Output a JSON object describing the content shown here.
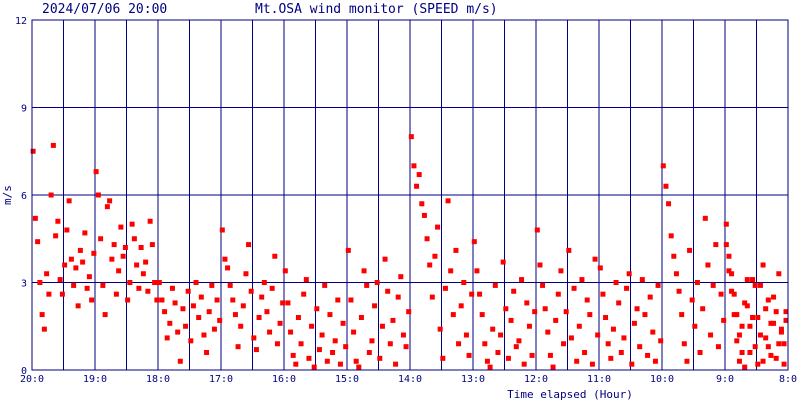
{
  "header": {
    "datetime": "2024/07/06 20:00",
    "title": "Mt.OSA wind monitor (SPEED m/s)"
  },
  "colors": {
    "background": "#ffffff",
    "grid": "#000080",
    "points": "#ff0000",
    "text": "#000080"
  },
  "chart_data": {
    "type": "scatter",
    "title": "Mt.OSA wind monitor (SPEED m/s)",
    "xlabel": "Time elapsed (Hour)",
    "ylabel": "m/s",
    "x_tick_labels": [
      "20:0",
      "19:0",
      "18:0",
      "17:0",
      "16:0",
      "15:0",
      "14:0",
      "13:0",
      "12:0",
      "11:0",
      "10:0",
      "9:0",
      "8:0"
    ],
    "y_ticks": [
      0,
      3,
      6,
      9,
      12
    ],
    "ylim": [
      0,
      12
    ],
    "x_direction": "time runs from 20:00 on the left back to 08:00 on the right",
    "grid": true,
    "series": [
      {
        "points_hourly_samples": [
          {
            "hour": "20:0",
            "values": [
              7.5,
              5.2,
              4.4,
              3.0,
              1.9,
              1.4,
              3.3,
              2.6,
              6.0,
              7.7,
              4.6,
              5.1,
              3.1,
              2.6,
              3.6,
              4.8,
              5.8,
              3.8,
              2.9,
              3.5,
              2.2,
              4.1,
              3.7,
              4.7,
              2.8,
              3.2,
              2.4,
              4.0
            ]
          },
          {
            "hour": "19:0",
            "values": [
              6.8,
              6.0,
              4.5,
              2.9,
              1.9,
              5.6,
              5.8,
              3.8,
              4.3,
              2.6,
              3.4,
              4.9,
              3.9,
              4.2,
              2.4,
              3.0,
              5.0,
              4.5,
              3.6,
              2.8,
              4.2,
              3.3,
              3.7,
              2.7,
              5.1,
              4.3,
              3.0,
              2.4
            ]
          },
          {
            "hour": "18:0",
            "values": [
              3.0,
              2.4,
              2.0,
              1.1,
              1.6,
              2.8,
              2.3,
              1.3,
              0.3,
              2.1,
              1.5,
              2.7,
              1.0,
              2.2,
              3.0,
              1.8,
              2.5,
              1.2,
              0.6,
              2.0,
              2.9,
              1.4,
              2.4,
              1.7
            ]
          },
          {
            "hour": "17:0",
            "values": [
              4.8,
              3.8,
              3.5,
              2.9,
              2.4,
              1.9,
              0.8,
              1.5,
              2.2,
              3.3,
              4.3,
              2.7,
              1.1,
              0.7,
              1.8,
              2.5,
              3.0,
              2.0,
              1.3,
              2.8,
              3.9,
              0.9,
              1.6,
              2.3
            ]
          },
          {
            "hour": "16:0",
            "values": [
              3.4,
              2.3,
              1.3,
              0.5,
              0.2,
              1.8,
              0.9,
              2.6,
              3.1,
              0.4,
              1.5,
              0.1,
              2.1,
              0.7,
              1.2,
              2.9,
              0.3,
              1.9,
              0.6,
              1.0,
              2.4,
              0.2,
              1.6,
              0.8
            ]
          },
          {
            "hour": "15:0",
            "values": [
              4.1,
              2.4,
              1.3,
              0.3,
              0.1,
              1.8,
              3.4,
              2.9,
              0.6,
              1.0,
              2.2,
              3.0,
              0.4,
              1.5,
              3.8,
              2.7,
              0.9,
              1.7,
              0.2,
              2.5,
              3.2,
              1.2,
              0.8,
              2.0
            ]
          },
          {
            "hour": "14:0",
            "values": [
              8.0,
              7.0,
              6.3,
              6.7,
              5.7,
              5.3,
              4.5,
              3.6,
              2.5,
              3.9,
              4.9,
              1.4,
              0.4,
              2.8,
              5.8,
              3.4,
              1.9,
              4.1,
              0.9,
              2.2,
              3.0,
              1.2,
              0.5,
              2.6
            ]
          },
          {
            "hour": "13:0",
            "values": [
              4.4,
              3.4,
              2.6,
              1.9,
              0.9,
              0.3,
              0.1,
              1.4,
              2.9,
              0.6,
              1.2,
              3.7,
              2.1,
              0.4,
              1.7,
              2.7,
              0.8,
              1.0,
              3.1,
              0.2,
              2.3,
              1.5,
              0.5,
              2.0
            ]
          },
          {
            "hour": "12:0",
            "values": [
              4.8,
              3.6,
              2.9,
              2.1,
              1.3,
              0.5,
              0.1,
              1.7,
              2.6,
              3.4,
              0.9,
              2.0,
              4.1,
              1.1,
              2.8,
              0.3,
              1.5,
              3.1,
              0.6,
              2.4,
              1.9,
              0.2,
              3.8,
              1.2
            ]
          },
          {
            "hour": "11:0",
            "values": [
              3.5,
              2.6,
              1.8,
              0.9,
              0.4,
              1.4,
              3.0,
              2.3,
              0.6,
              1.1,
              2.8,
              3.3,
              0.2,
              1.6,
              2.1,
              0.8,
              3.1,
              1.9,
              0.5,
              2.5,
              1.3,
              0.3,
              2.9,
              1.0
            ]
          },
          {
            "hour": "10:0",
            "values": [
              7.0,
              6.3,
              5.7,
              4.6,
              3.9,
              3.3,
              2.7,
              1.9,
              0.9,
              0.3,
              4.1,
              2.4,
              1.5,
              3.0,
              0.6,
              2.1,
              5.2,
              3.6,
              1.2,
              2.9,
              4.3,
              0.8,
              2.6,
              1.7
            ]
          },
          {
            "hour": "9:0",
            "values": [
              4.3,
              3.4,
              2.7,
              1.9,
              1.0,
              0.3,
              1.5,
              2.3,
              3.1,
              0.6,
              1.8,
              2.9,
              0.2,
              1.2,
              3.6,
              2.1,
              0.8,
              1.6,
              2.5,
              0.4,
              3.3,
              1.4,
              0.9,
              2.0
            ]
          },
          {
            "hour": "8:0",
            "values": [
              5.0,
              3.9,
              3.3,
              2.6,
              1.9,
              1.2,
              0.6,
              0.1,
              2.2,
              1.5,
              3.1,
              0.8,
              1.8,
              2.9,
              0.3,
              1.1,
              2.4,
              0.5,
              1.6,
              2.0,
              0.9,
              1.3,
              0.2,
              1.7
            ]
          }
        ]
      }
    ]
  }
}
